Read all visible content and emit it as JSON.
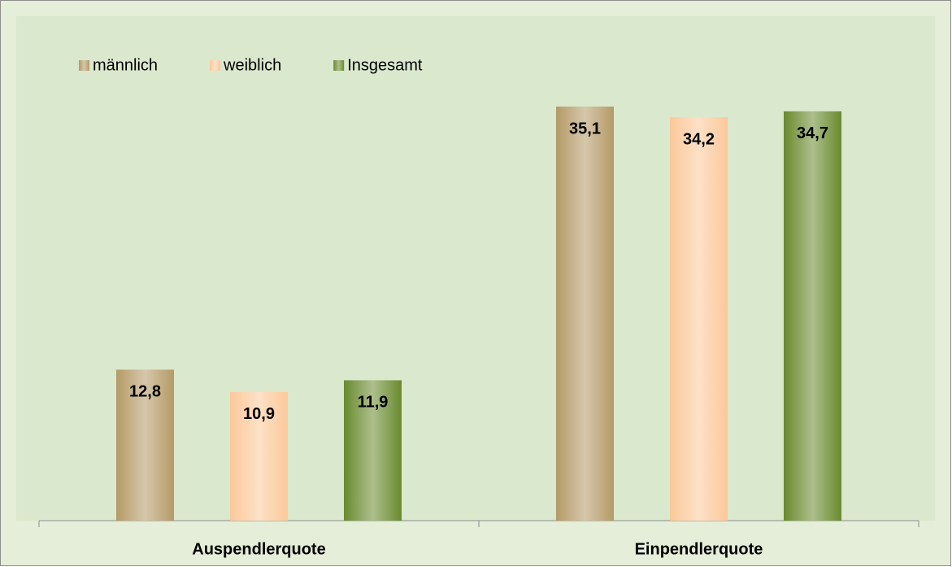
{
  "chart_data": {
    "type": "bar",
    "categories": [
      "Auspendlerquote",
      "Einpendlerquote"
    ],
    "series": [
      {
        "name": "männlich",
        "color": "#b59a66",
        "values": [
          12.8,
          35.1
        ],
        "value_labels": [
          "12,8",
          "35,1"
        ]
      },
      {
        "name": "weiblich",
        "color": "#fbc89a",
        "values": [
          10.9,
          34.2
        ],
        "value_labels": [
          "10,9",
          "34,2"
        ]
      },
      {
        "name": "Insgesamt",
        "color": "#6a8a2e",
        "values": [
          11.9,
          34.7
        ],
        "value_labels": [
          "11,9",
          "34,7"
        ]
      }
    ],
    "ylim": [
      0,
      40
    ],
    "legend": "top-left"
  }
}
